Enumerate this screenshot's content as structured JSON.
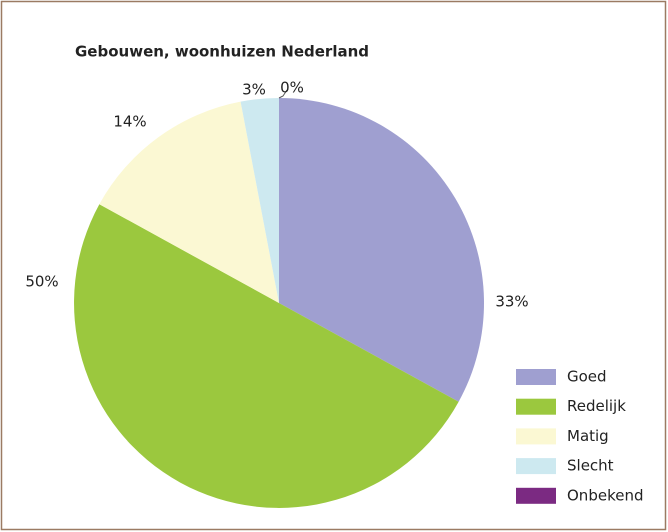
{
  "chart_data": {
    "type": "pie",
    "title": "Gebouwen, woonhuizen Nederland",
    "categories": [
      "Goed",
      "Redelijk",
      "Matig",
      "Slecht",
      "Onbekend"
    ],
    "values": [
      33,
      50,
      14,
      3,
      0
    ],
    "value_labels": [
      "33%",
      "50%",
      "14%",
      "3%",
      "0%"
    ],
    "colors": [
      "#9f9fd0",
      "#9bc83e",
      "#fbf8d3",
      "#cde9f0",
      "#7b2a82"
    ],
    "legend": "right"
  }
}
